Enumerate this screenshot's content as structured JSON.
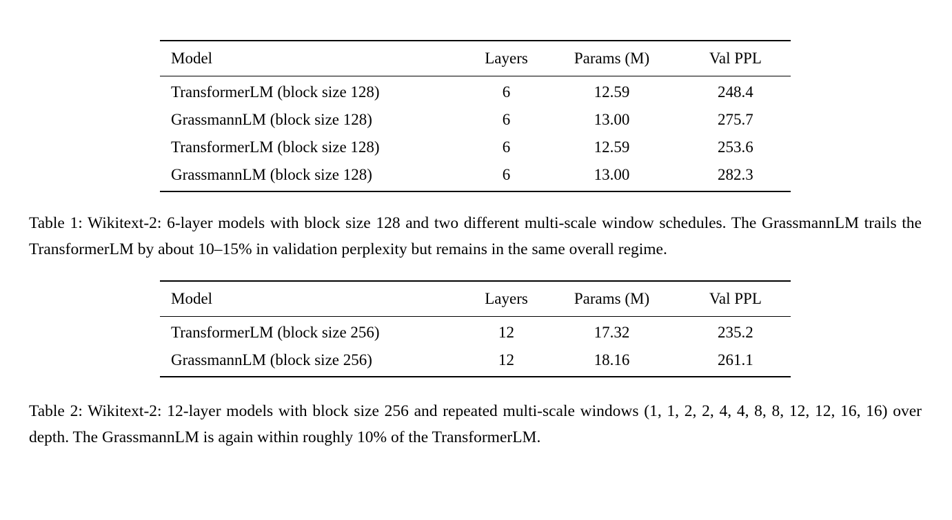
{
  "tables": [
    {
      "headers": [
        "Model",
        "Layers",
        "Params (M)",
        "Val PPL"
      ],
      "rows": [
        [
          "TransformerLM (block size 128)",
          "6",
          "12.59",
          "248.4"
        ],
        [
          "GrassmannLM (block size 128)",
          "6",
          "13.00",
          "275.7"
        ],
        [
          "TransformerLM (block size 128)",
          "6",
          "12.59",
          "253.6"
        ],
        [
          "GrassmannLM (block size 128)",
          "6",
          "13.00",
          "282.3"
        ]
      ],
      "caption": "Table 1: Wikitext-2: 6-layer models with block size 128 and two different multi-scale window schedules. The GrassmannLM trails the TransformerLM by about 10–15% in validation perplexity but remains in the same overall regime."
    },
    {
      "headers": [
        "Model",
        "Layers",
        "Params (M)",
        "Val PPL"
      ],
      "rows": [
        [
          "TransformerLM (block size 256)",
          "12",
          "17.32",
          "235.2"
        ],
        [
          "GrassmannLM (block size 256)",
          "12",
          "18.16",
          "261.1"
        ]
      ],
      "caption": "Table 2: Wikitext-2: 12-layer models with block size 256 and repeated multi-scale windows (1, 1, 2, 2, 4, 4, 8, 8, 12, 12, 16, 16) over depth. The GrassmannLM is again within roughly 10% of the TransformerLM."
    }
  ]
}
